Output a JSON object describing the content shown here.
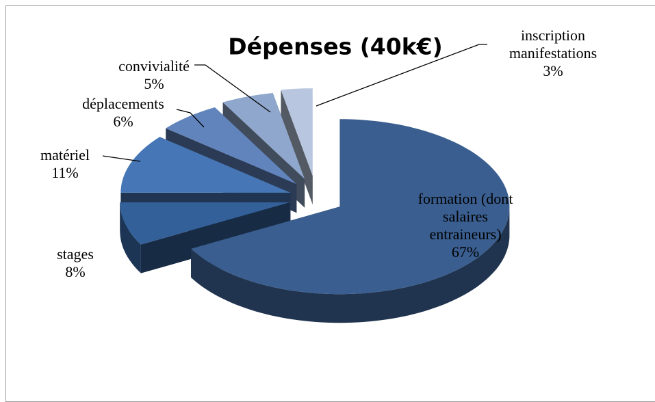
{
  "chart_data": {
    "type": "pie",
    "title": "Dépenses (40k€)",
    "categories": [
      "formation (dont salaires entraineurs)",
      "stages",
      "matériel",
      "déplacements",
      "convivialité",
      "inscription manifestations"
    ],
    "values": [
      67,
      8,
      11,
      6,
      5,
      3
    ],
    "value_labels": [
      "67%",
      "8%",
      "11%",
      "6%",
      "5%",
      "3%"
    ],
    "colors": [
      "#3a5e8f",
      "#34609a",
      "#4676b5",
      "#6184bd",
      "#8fa7cc",
      "#b8c7df"
    ]
  }
}
